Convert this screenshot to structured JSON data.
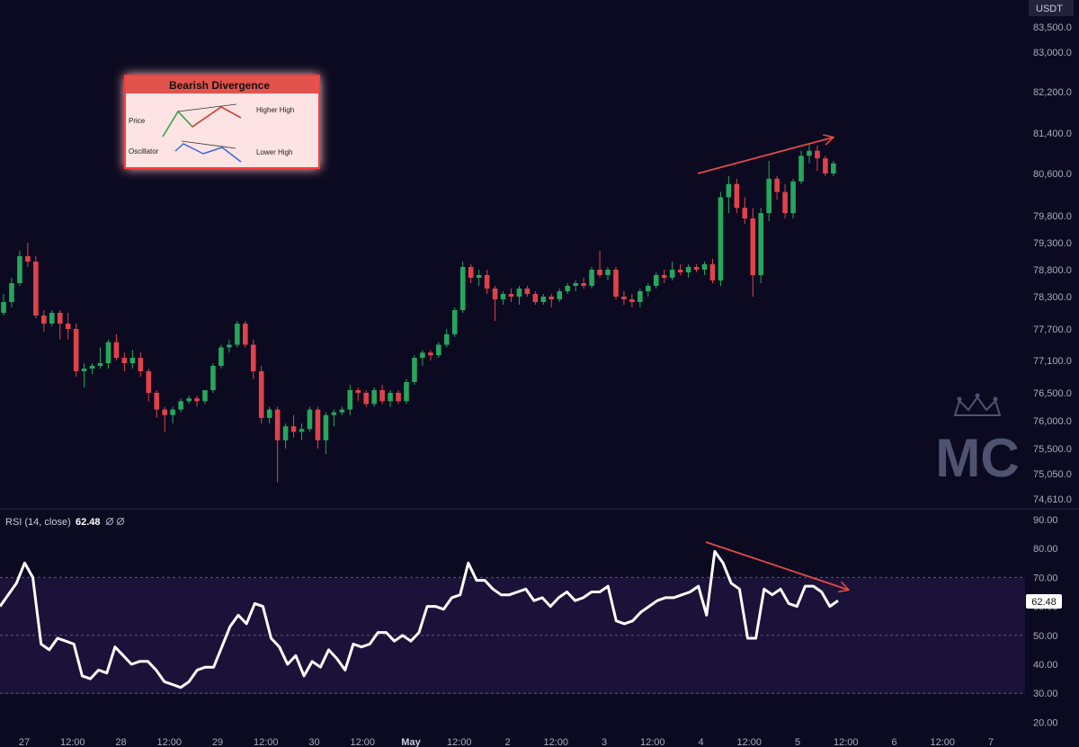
{
  "chart_data": [
    {
      "type": "candlestick",
      "unit": "USDT",
      "y_ticks": [
        83500.0,
        83000.0,
        82200.0,
        81400.0,
        80600.0,
        79800.0,
        79300.0,
        78800.0,
        78300.0,
        77700.0,
        77100.0,
        76500.0,
        76000.0,
        75500.0,
        75050.0,
        74610.0
      ],
      "y_tick_labels": [
        "83,500.0",
        "83,000.0",
        "82,200.0",
        "81,400.0",
        "80,600.0",
        "79,800.0",
        "79,300.0",
        "78,800.0",
        "78,300.0",
        "77,700.0",
        "77,100.0",
        "76,500.0",
        "76,000.0",
        "75,500.0",
        "75,050.0",
        "74,610.0"
      ],
      "x_ticks": [
        "27",
        "12:00",
        "28",
        "12:00",
        "29",
        "12:00",
        "30",
        "12:00",
        "May",
        "12:00",
        "2",
        "12:00",
        "3",
        "12:00",
        "4",
        "12:00",
        "5",
        "12:00",
        "6",
        "12:00",
        "7"
      ],
      "candles": [
        [
          78000,
          78350,
          77950,
          78200
        ],
        [
          78200,
          78650,
          78100,
          78550
        ],
        [
          78550,
          79150,
          78500,
          79050
        ],
        [
          79050,
          79300,
          78850,
          78950
        ],
        [
          78950,
          79050,
          77900,
          77950
        ],
        [
          77950,
          78050,
          77650,
          77800
        ],
        [
          77800,
          78050,
          77750,
          78000
        ],
        [
          78000,
          78050,
          77500,
          77800
        ],
        [
          77800,
          78000,
          77500,
          77700
        ],
        [
          77700,
          77800,
          76800,
          76900
        ],
        [
          76900,
          77050,
          76600,
          76950
        ],
        [
          76950,
          77050,
          76850,
          77000
        ],
        [
          77000,
          77350,
          76950,
          77050
        ],
        [
          77050,
          77500,
          76950,
          77450
        ],
        [
          77450,
          77600,
          77100,
          77150
        ],
        [
          77150,
          77250,
          76900,
          77050
        ],
        [
          77050,
          77300,
          76950,
          77150
        ],
        [
          77150,
          77250,
          76800,
          76900
        ],
        [
          76900,
          76950,
          76350,
          76500
        ],
        [
          76500,
          76550,
          76050,
          76200
        ],
        [
          76200,
          76250,
          75800,
          76100
        ],
        [
          76100,
          76250,
          75950,
          76200
        ],
        [
          76200,
          76400,
          76150,
          76350
        ],
        [
          76350,
          76450,
          76300,
          76400
        ],
        [
          76400,
          76450,
          76250,
          76350
        ],
        [
          76350,
          76550,
          76300,
          76550
        ],
        [
          76550,
          77050,
          76500,
          77000
        ],
        [
          77000,
          77400,
          76950,
          77350
        ],
        [
          77350,
          77500,
          77250,
          77400
        ],
        [
          77400,
          77850,
          77350,
          77800
        ],
        [
          77800,
          77850,
          77350,
          77400
        ],
        [
          77400,
          77500,
          76750,
          76900
        ],
        [
          76900,
          77000,
          75950,
          76050
        ],
        [
          76050,
          76250,
          75950,
          76200
        ],
        [
          76200,
          76250,
          74900,
          75650
        ],
        [
          75650,
          75950,
          75500,
          75900
        ],
        [
          75900,
          76100,
          75700,
          75800
        ],
        [
          75800,
          75950,
          75650,
          75850
        ],
        [
          75850,
          76250,
          75800,
          76200
        ],
        [
          76200,
          76250,
          75500,
          75650
        ],
        [
          75650,
          76150,
          75400,
          76100
        ],
        [
          76100,
          76200,
          75900,
          76150
        ],
        [
          76150,
          76250,
          76100,
          76200
        ],
        [
          76200,
          76650,
          76100,
          76550
        ],
        [
          76550,
          76600,
          76350,
          76500
        ],
        [
          76500,
          76550,
          76250,
          76300
        ],
        [
          76300,
          76600,
          76250,
          76550
        ],
        [
          76550,
          76650,
          76300,
          76350
        ],
        [
          76350,
          76550,
          76250,
          76500
        ],
        [
          76500,
          76550,
          76300,
          76350
        ],
        [
          76350,
          76750,
          76300,
          76700
        ],
        [
          76700,
          77200,
          76650,
          77150
        ],
        [
          77150,
          77300,
          77000,
          77250
        ],
        [
          77250,
          77300,
          77100,
          77200
        ],
        [
          77200,
          77450,
          77150,
          77400
        ],
        [
          77400,
          77700,
          77350,
          77600
        ],
        [
          77600,
          78100,
          77550,
          78050
        ],
        [
          78050,
          78950,
          78000,
          78850
        ],
        [
          78850,
          78900,
          78550,
          78650
        ],
        [
          78650,
          78800,
          78500,
          78700
        ],
        [
          78700,
          78800,
          78350,
          78450
        ],
        [
          78450,
          78500,
          77850,
          78250
        ],
        [
          78250,
          78400,
          78150,
          78350
        ],
        [
          78350,
          78450,
          78200,
          78300
        ],
        [
          78300,
          78500,
          78150,
          78450
        ],
        [
          78450,
          78500,
          78300,
          78350
        ],
        [
          78350,
          78400,
          78150,
          78200
        ],
        [
          78200,
          78350,
          78150,
          78300
        ],
        [
          78300,
          78350,
          78100,
          78250
        ],
        [
          78250,
          78450,
          78200,
          78400
        ],
        [
          78400,
          78550,
          78350,
          78500
        ],
        [
          78500,
          78600,
          78400,
          78550
        ],
        [
          78550,
          78650,
          78450,
          78500
        ],
        [
          78500,
          78850,
          78450,
          78800
        ],
        [
          78800,
          79150,
          78650,
          78700
        ],
        [
          78700,
          78850,
          78600,
          78800
        ],
        [
          78800,
          78850,
          78250,
          78300
        ],
        [
          78300,
          78400,
          78150,
          78250
        ],
        [
          78250,
          78350,
          78100,
          78200
        ],
        [
          78200,
          78450,
          78100,
          78400
        ],
        [
          78400,
          78550,
          78300,
          78500
        ],
        [
          78500,
          78750,
          78450,
          78700
        ],
        [
          78700,
          78800,
          78550,
          78650
        ],
        [
          78650,
          78950,
          78600,
          78800
        ],
        [
          78800,
          78900,
          78700,
          78750
        ],
        [
          78750,
          78900,
          78650,
          78850
        ],
        [
          78850,
          78900,
          78750,
          78800
        ],
        [
          78800,
          78950,
          78700,
          78900
        ],
        [
          78900,
          79000,
          78550,
          78600
        ],
        [
          78600,
          80250,
          78500,
          80150
        ],
        [
          80150,
          80550,
          79850,
          80400
        ],
        [
          80400,
          80500,
          79850,
          79950
        ],
        [
          79950,
          80150,
          79650,
          79750
        ],
        [
          79750,
          79950,
          78300,
          78700
        ],
        [
          78700,
          79950,
          78550,
          79850
        ],
        [
          79850,
          80850,
          79700,
          80500
        ],
        [
          80500,
          80550,
          80100,
          80250
        ],
        [
          80250,
          80400,
          79750,
          79850
        ],
        [
          79850,
          80500,
          79750,
          80450
        ],
        [
          80450,
          81050,
          80400,
          80950
        ],
        [
          80950,
          81200,
          80800,
          81050
        ],
        [
          81050,
          81150,
          80650,
          80900
        ],
        [
          80900,
          80950,
          80550,
          80600
        ],
        [
          80600,
          80850,
          80550,
          80800
        ]
      ]
    },
    {
      "type": "line",
      "title": "RSI (14, close)",
      "current_value": 62.48,
      "current_label": "62.48",
      "y_ticks": [
        90.0,
        80.0,
        70.0,
        60.0,
        50.0,
        40.0,
        30.0,
        20.0
      ],
      "y_tick_labels": [
        "90.00",
        "80.00",
        "70.00",
        "60.00",
        "50.00",
        "40.00",
        "30.00",
        "20.00"
      ],
      "bands": [
        70,
        50,
        30
      ],
      "values": [
        60,
        64,
        68,
        75,
        70,
        47,
        45,
        49,
        48,
        47,
        36,
        35,
        38,
        37,
        46,
        43,
        40,
        41,
        41,
        38,
        34,
        33,
        32,
        34,
        38,
        39,
        39,
        46,
        53,
        57,
        54,
        61,
        60,
        49,
        46,
        40,
        43,
        36,
        41,
        39,
        45,
        42,
        38,
        47,
        46,
        47,
        51,
        51,
        48,
        50,
        48,
        51,
        60,
        60,
        59,
        63,
        64,
        75,
        69,
        69,
        66,
        64,
        64,
        65,
        66,
        62,
        63,
        60,
        63,
        65,
        62,
        63,
        65,
        65,
        67,
        55,
        54,
        55,
        58,
        60,
        62,
        63,
        63,
        64,
        65,
        67,
        57,
        79,
        75,
        68,
        66,
        49,
        49,
        66,
        64,
        66,
        61,
        60,
        67,
        67,
        65,
        60,
        62
      ]
    }
  ],
  "header": {
    "currency": "USDT"
  },
  "rsi_pane": {
    "title": "RSI (14, close)",
    "value": "62.48",
    "icons": [
      "eye-off-icon",
      "eye-off-icon"
    ]
  },
  "legend_box": {
    "title": "Bearish Divergence",
    "price_label": "Price",
    "price_note": "Higher High",
    "osc_label": "Oscillator",
    "osc_note": "Lower High"
  },
  "watermark": {
    "text": "MC",
    "icon": "crown-icon"
  },
  "colors": {
    "background": "#0b0a20",
    "up": "#26a65b",
    "down": "#e0424a",
    "rsi_line": "#ffffff",
    "rsi_band": "#1a1238",
    "divergence_arrow": "#e24a4a",
    "legend_header": "#e3534d"
  }
}
